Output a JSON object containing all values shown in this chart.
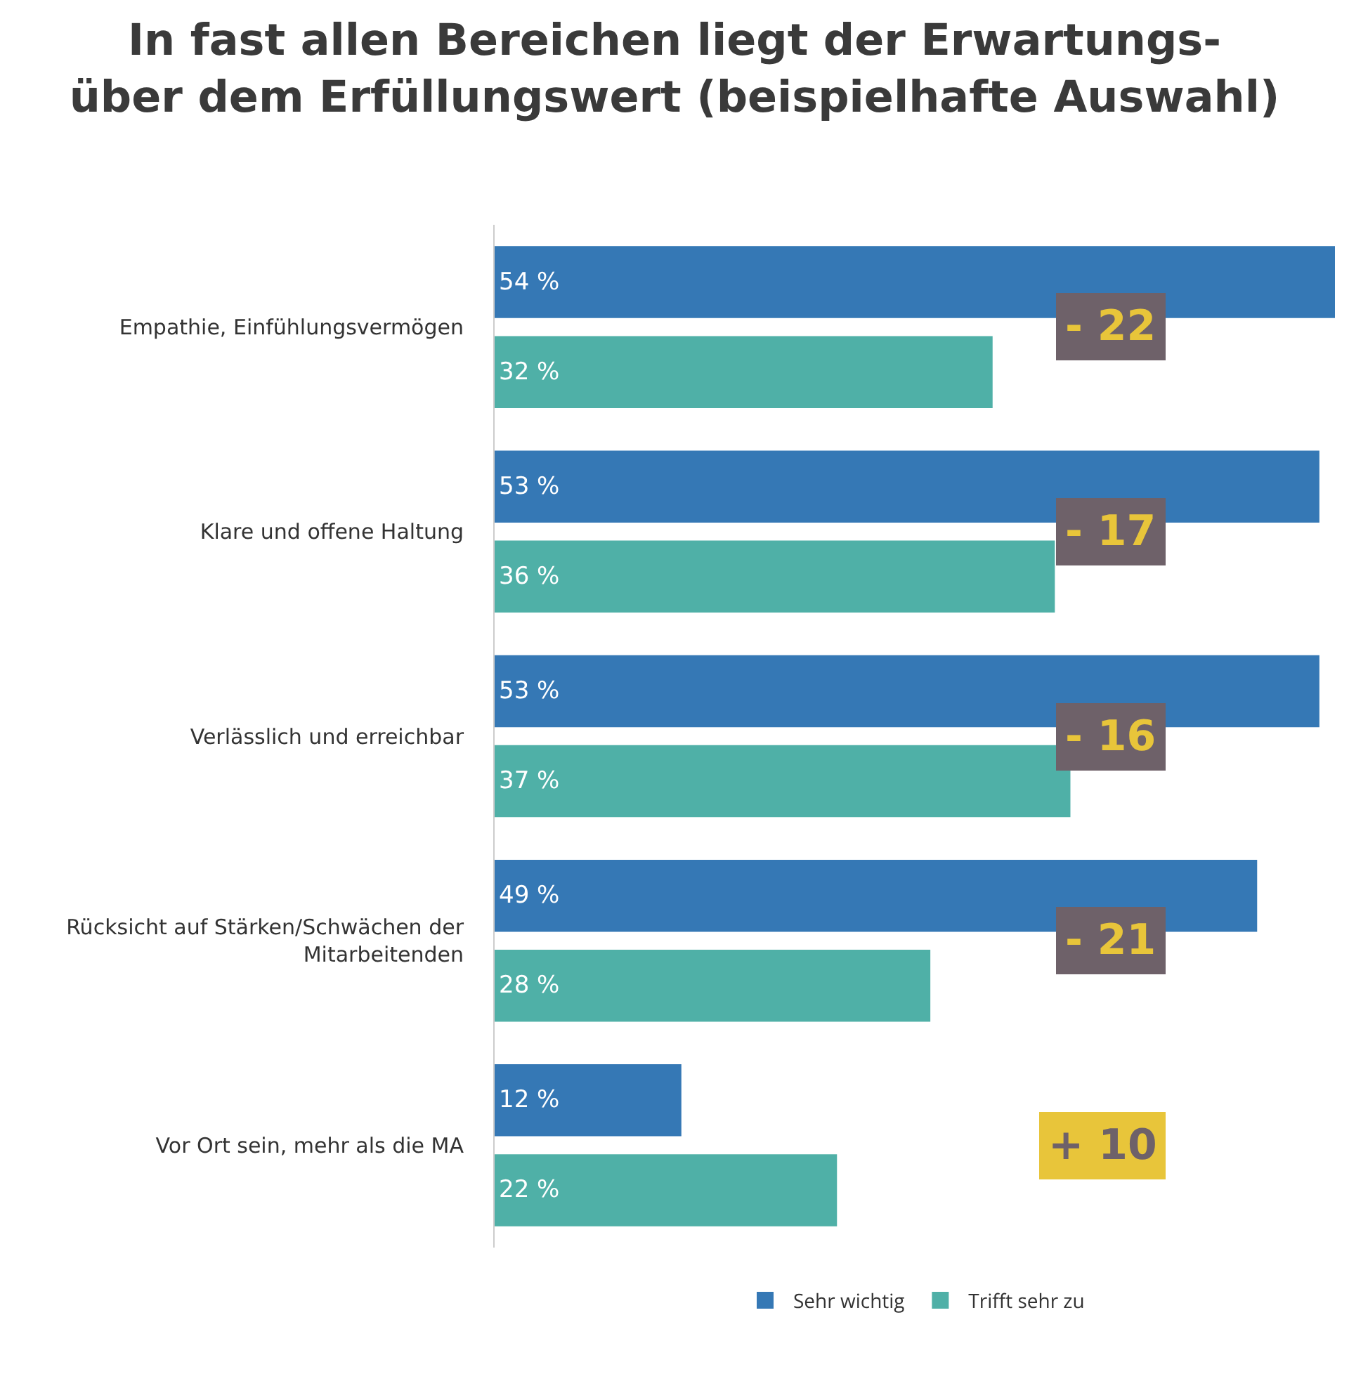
{
  "chart_data": {
    "type": "bar",
    "orientation": "horizontal",
    "title": "In fast allen Bereichen liegt der Erwartungs-\nüber dem Erfüllungswert (beispielhafte Auswahl)",
    "categories": [
      "Empathie, Einfühlungsvermögen",
      "Klare und offene Haltung",
      "Verlässlich und erreichbar",
      "Rücksicht auf Stärken/Schwächen der Mitarbeitenden",
      "Vor Ort sein, mehr als die MA"
    ],
    "series": [
      {
        "name": "Sehr wichtig",
        "color": "#3578b5",
        "values": [
          54,
          53,
          53,
          49,
          12
        ],
        "value_labels": [
          "54 %",
          "53 %",
          "53 %",
          "49 %",
          "12 %"
        ]
      },
      {
        "name": "Trifft sehr zu",
        "color": "#4fb0a7",
        "values": [
          32,
          36,
          37,
          28,
          22
        ],
        "value_labels": [
          "32 %",
          "36 %",
          "37 %",
          "28 %",
          "22 %"
        ]
      }
    ],
    "xlim": [
      0,
      54
    ],
    "legend": "bottom",
    "grid": false,
    "tick_labels": "y",
    "annotations": [
      "- 22",
      "- 17",
      "- 16",
      "- 21",
      "+ 10"
    ]
  }
}
